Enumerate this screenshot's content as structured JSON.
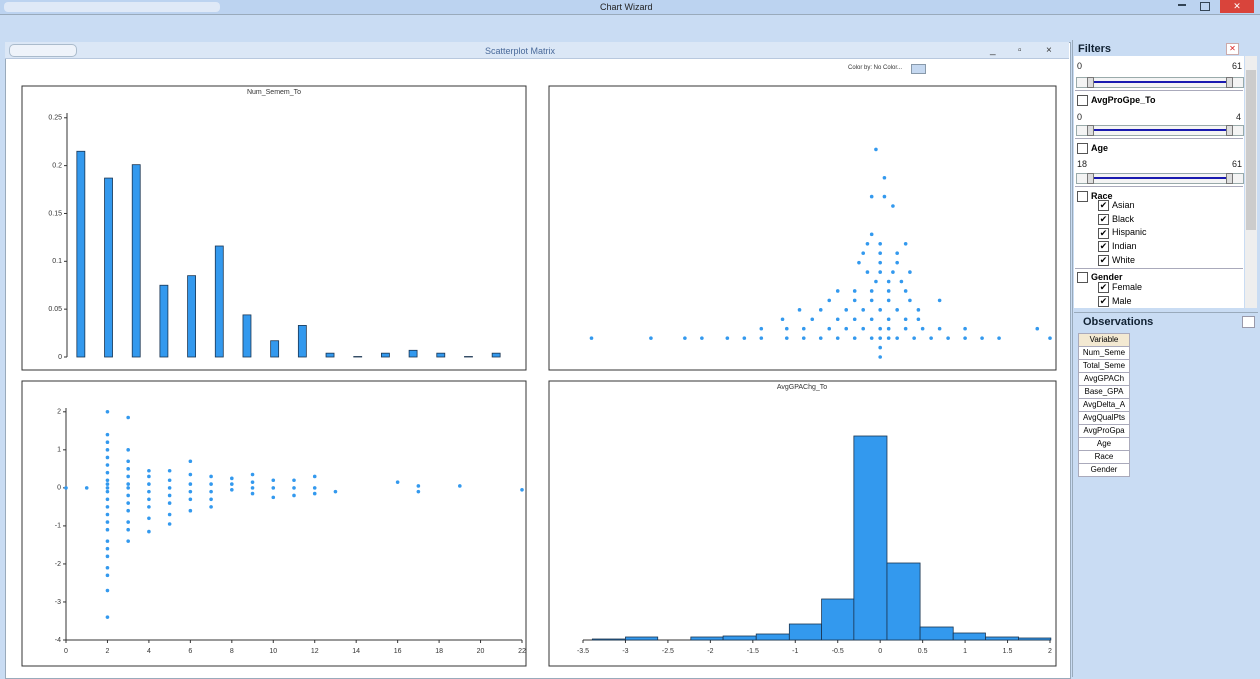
{
  "window": {
    "title": "Chart Wizard",
    "subtitle": "Scatterplot Matrix",
    "color_by": "Color by: No Color..."
  },
  "chart_data": [
    {
      "type": "bar",
      "title": "Num_Semem_To",
      "color": "#3399ee",
      "categories": [
        null,
        null,
        null,
        null,
        null,
        null,
        null,
        null,
        null,
        null,
        null,
        null,
        null,
        null,
        null,
        null
      ],
      "values": [
        0.215,
        0.187,
        0.201,
        0.075,
        0.085,
        0.116,
        0.044,
        0.017,
        0.033,
        0.004,
        0.0005,
        0.004,
        0.007,
        0.004,
        0.0005,
        0.004
      ],
      "ylim": [
        0,
        0.255
      ],
      "yticks": [
        0,
        0.05,
        0.1,
        0.15,
        0.2,
        0.25
      ]
    },
    {
      "type": "scatter",
      "color": "#3399ee",
      "x": [
        0,
        0,
        2.0,
        1.4,
        1.2,
        1.0,
        0.8,
        0.6,
        0.4,
        0.2,
        0.1,
        0,
        -0.1,
        -0.3,
        -0.5,
        -0.7,
        -0.9,
        -1.1,
        -1.4,
        -1.6,
        -1.8,
        -2.1,
        -2.3,
        -2.7,
        -3.4,
        1.85,
        1.0,
        0.7,
        0.5,
        0.3,
        0.1,
        0,
        -0.2,
        -0.4,
        -0.6,
        -0.9,
        -1.1,
        -1.4,
        0.45,
        0.3,
        0.1,
        -0.1,
        -0.3,
        -0.5,
        -0.8,
        -1.15,
        0.45,
        0.2,
        0,
        -0.2,
        -0.4,
        -0.7,
        -0.95,
        0.7,
        0.35,
        0.1,
        -0.1,
        -0.3,
        -0.6,
        0.3,
        0.1,
        -0.1,
        -0.3,
        -0.5,
        0.25,
        0.1,
        -0.05,
        0.35,
        0.15,
        0,
        -0.15,
        0.2,
        0,
        -0.25,
        0.2,
        0,
        -0.2,
        0.3,
        0,
        -0.15,
        -0.1,
        0.15,
        0.05,
        -0.1,
        0.05,
        -0.05
      ],
      "values": [
        0,
        1,
        2,
        2,
        2,
        2,
        2,
        2,
        2,
        2,
        2,
        2,
        2,
        2,
        2,
        2,
        2,
        2,
        2,
        2,
        2,
        2,
        2,
        2,
        2,
        3,
        3,
        3,
        3,
        3,
        3,
        3,
        3,
        3,
        3,
        3,
        3,
        3,
        4,
        4,
        4,
        4,
        4,
        4,
        4,
        4,
        5,
        5,
        5,
        5,
        5,
        5,
        5,
        6,
        6,
        6,
        6,
        6,
        6,
        7,
        7,
        7,
        7,
        7,
        8,
        8,
        8,
        9,
        9,
        9,
        9,
        10,
        10,
        10,
        11,
        11,
        11,
        12,
        12,
        12,
        13,
        16,
        17,
        17,
        19,
        22
      ],
      "xlim": [
        -3.5,
        2
      ],
      "ylim": [
        0,
        23
      ]
    },
    {
      "type": "scatter",
      "color": "#3399ee",
      "x": [
        0,
        1,
        2,
        2,
        2,
        2,
        2,
        2,
        2,
        2,
        2,
        2,
        2,
        2,
        2,
        2,
        2,
        2,
        2,
        2,
        2,
        2,
        2,
        2,
        2,
        3,
        3,
        3,
        3,
        3,
        3,
        3,
        3,
        3,
        3,
        3,
        3,
        3,
        4,
        4,
        4,
        4,
        4,
        4,
        4,
        4,
        5,
        5,
        5,
        5,
        5,
        5,
        5,
        6,
        6,
        6,
        6,
        6,
        6,
        7,
        7,
        7,
        7,
        7,
        8,
        8,
        8,
        9,
        9,
        9,
        9,
        10,
        10,
        10,
        11,
        11,
        11,
        12,
        12,
        12,
        13,
        16,
        17,
        17,
        19,
        22
      ],
      "values": [
        0,
        0,
        2.0,
        1.4,
        1.2,
        1.0,
        0.8,
        0.6,
        0.4,
        0.2,
        0.1,
        0,
        -0.1,
        -0.3,
        -0.5,
        -0.7,
        -0.9,
        -1.1,
        -1.4,
        -1.6,
        -1.8,
        -2.1,
        -2.3,
        -2.7,
        -3.4,
        1.85,
        1.0,
        0.7,
        0.5,
        0.3,
        0.1,
        0,
        -0.2,
        -0.4,
        -0.6,
        -0.9,
        -1.1,
        -1.4,
        0.45,
        0.3,
        0.1,
        -0.1,
        -0.3,
        -0.5,
        -0.8,
        -1.15,
        0.45,
        0.2,
        0,
        -0.2,
        -0.4,
        -0.7,
        -0.95,
        0.7,
        0.35,
        0.1,
        -0.1,
        -0.3,
        -0.6,
        0.3,
        0.1,
        -0.1,
        -0.3,
        -0.5,
        0.25,
        0.1,
        -0.05,
        0.35,
        0.15,
        0,
        -0.15,
        0.2,
        0,
        -0.25,
        0.2,
        0,
        -0.2,
        0.3,
        0,
        -0.15,
        -0.1,
        0.15,
        0.05,
        -0.1,
        0.05,
        -0.05
      ],
      "xlim": [
        0,
        22
      ],
      "ylim": [
        -4,
        2.1
      ],
      "xticks": [
        0,
        2,
        4,
        6,
        8,
        10,
        12,
        14,
        16,
        18,
        20,
        22
      ],
      "yticks": [
        -4,
        -3,
        -2,
        -1,
        0,
        1,
        2
      ]
    },
    {
      "type": "histogram",
      "title": "AvgGPAChg_To",
      "color": "#3399ee",
      "bins": [
        -3.39,
        -3.0,
        -2.62,
        -2.23,
        -1.85,
        -1.46,
        -1.07,
        -0.69,
        -0.31,
        0.08,
        0.47,
        0.86,
        1.24,
        1.63,
        2.01
      ],
      "values": [
        1,
        3,
        0,
        3,
        4,
        6,
        16,
        41,
        204,
        77,
        13,
        7,
        3,
        2
      ],
      "xlim": [
        -3.5,
        2
      ],
      "ylim": [
        0,
        210
      ],
      "xticks": [
        -3.5,
        -3,
        -2.5,
        -2,
        -1.5,
        -1,
        -0.5,
        0,
        0.5,
        1,
        1.5,
        2
      ]
    }
  ],
  "filters": {
    "title": "Filters",
    "first_min": 0,
    "first_max": 61,
    "gpa": {
      "name": "AvgProGpe_To",
      "min": 0,
      "max": 4
    },
    "age": {
      "name": "Age",
      "min": 18,
      "max": 61
    },
    "race": {
      "name": "Race",
      "options": [
        "Asian",
        "Black",
        "Hispanic",
        "Indian",
        "White"
      ]
    },
    "gender": {
      "name": "Gender",
      "options": [
        "Female",
        "Male"
      ]
    }
  },
  "observations": {
    "title": "Observations",
    "header": "Variable",
    "rows": [
      "Num_Seme",
      "Total_Seme",
      "AvgGPACh",
      "Base_GPA",
      "AvgDelta_A",
      "AvgQualPts",
      "AvgProGpa",
      "Age",
      "Race",
      "Gender"
    ]
  }
}
